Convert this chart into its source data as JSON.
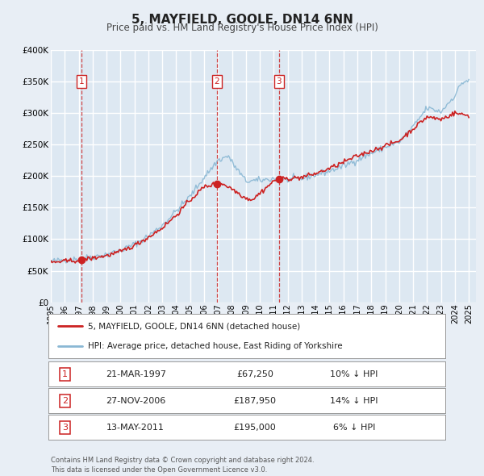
{
  "title": "5, MAYFIELD, GOOLE, DN14 6NN",
  "subtitle": "Price paid vs. HM Land Registry's House Price Index (HPI)",
  "title_fontsize": 11,
  "subtitle_fontsize": 8.5,
  "bg_color": "#e8eef5",
  "plot_bg_color_top": "#ccdae8",
  "plot_bg_color_bottom": "#dde8f2",
  "grid_color": "#ffffff",
  "ylim": [
    0,
    400000
  ],
  "yticks": [
    0,
    50000,
    100000,
    150000,
    200000,
    250000,
    300000,
    350000,
    400000
  ],
  "xlim_start": 1995.0,
  "xlim_end": 2025.5,
  "sale_dates": [
    1997.22,
    2006.91,
    2011.37
  ],
  "sale_prices": [
    67250,
    187950,
    195000
  ],
  "sale_labels": [
    "1",
    "2",
    "3"
  ],
  "vline_color": "#cc3333",
  "vline_style": "--",
  "sale_marker_color": "#cc2222",
  "hpi_line_color": "#8ab8d4",
  "price_line_color": "#cc2222",
  "legend_label_price": "5, MAYFIELD, GOOLE, DN14 6NN (detached house)",
  "legend_label_hpi": "HPI: Average price, detached house, East Riding of Yorkshire",
  "table_rows": [
    [
      "1",
      "21-MAR-1997",
      "£67,250",
      "10% ↓ HPI"
    ],
    [
      "2",
      "27-NOV-2006",
      "£187,950",
      "14% ↓ HPI"
    ],
    [
      "3",
      "13-MAY-2011",
      "£195,000",
      "6% ↓ HPI"
    ]
  ],
  "footer_text": "Contains HM Land Registry data © Crown copyright and database right 2024.\nThis data is licensed under the Open Government Licence v3.0.",
  "xtick_years": [
    1995,
    1996,
    1997,
    1998,
    1999,
    2000,
    2001,
    2002,
    2003,
    2004,
    2005,
    2006,
    2007,
    2008,
    2009,
    2010,
    2011,
    2012,
    2013,
    2014,
    2015,
    2016,
    2017,
    2018,
    2019,
    2020,
    2021,
    2022,
    2023,
    2024,
    2025
  ]
}
